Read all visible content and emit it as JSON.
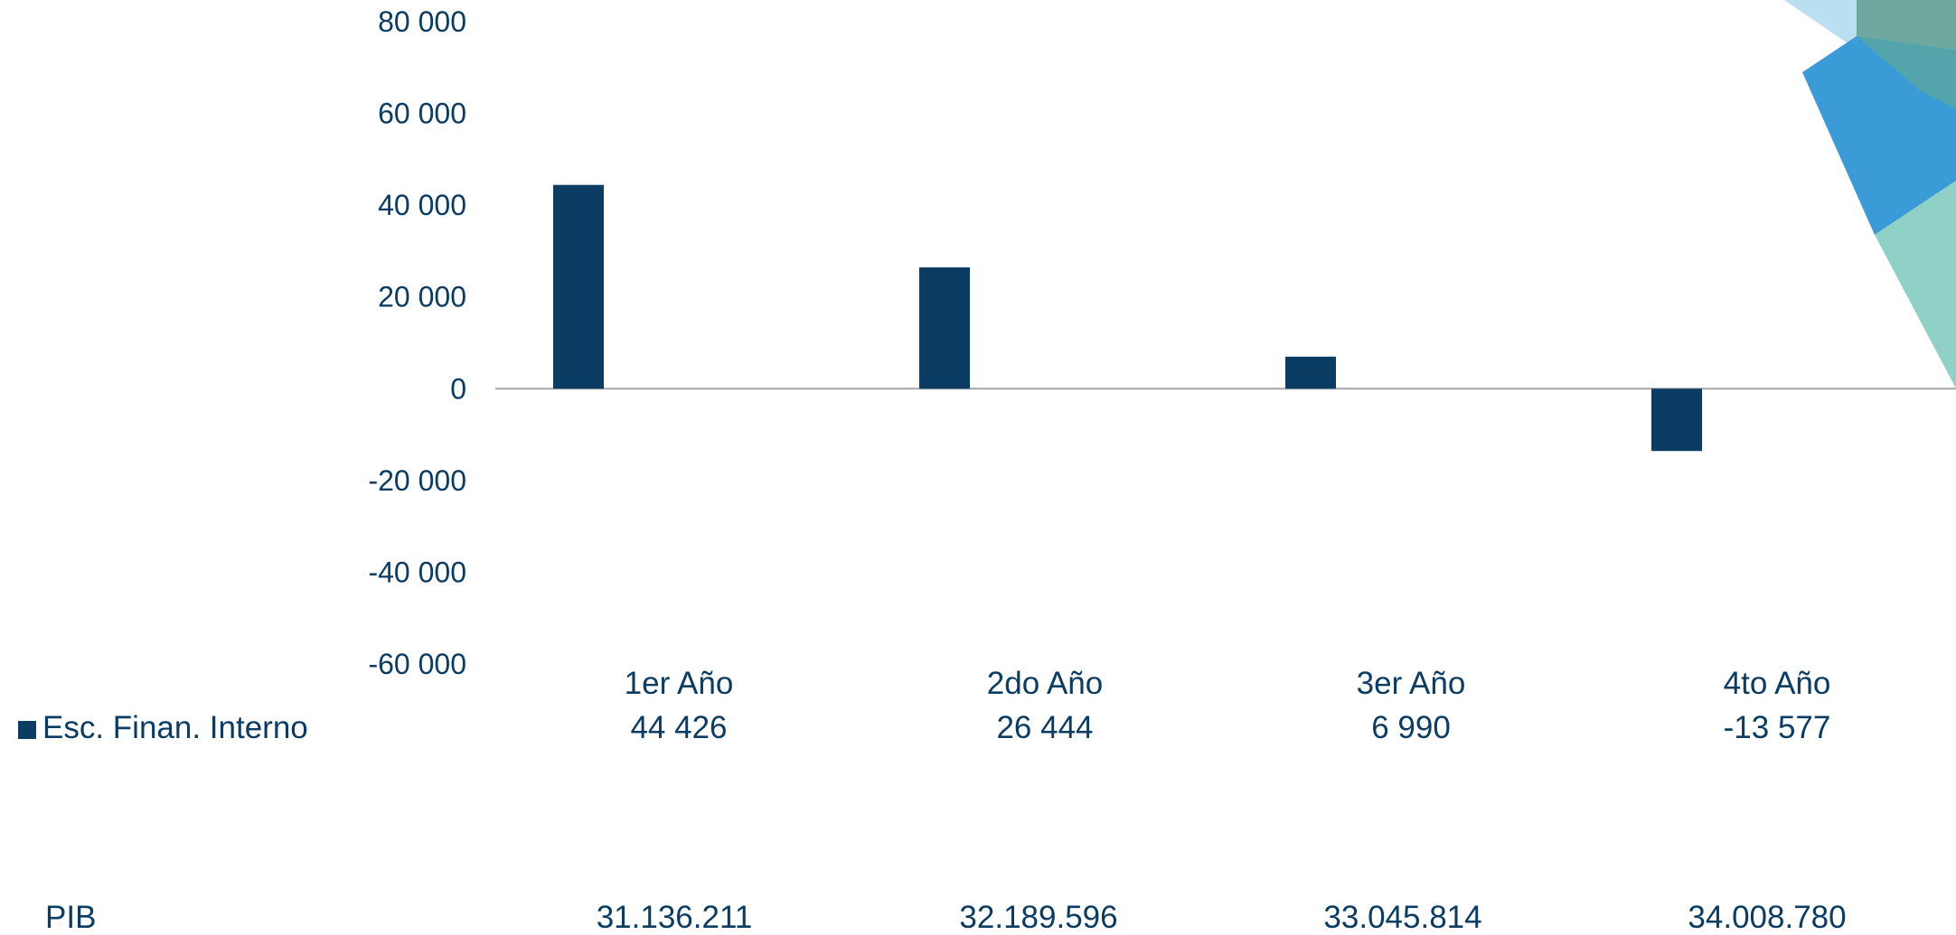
{
  "colors": {
    "bar": "#0b3c63",
    "text": "#0b3c63",
    "zero_line": "#a6a6a6"
  },
  "chart_data": {
    "type": "bar",
    "categories": [
      "1er Año",
      "2do Año",
      "3er Año",
      "4to Año"
    ],
    "series": [
      {
        "name": "Esc. Finan. Interno",
        "values": [
          44426,
          26444,
          6990,
          -13577
        ],
        "value_labels": [
          "44 426",
          "26 444",
          "6 990",
          "-13 577"
        ]
      }
    ],
    "ylim": [
      -60000,
      80000
    ],
    "yticks": [
      80000,
      60000,
      40000,
      20000,
      0,
      -20000,
      -40000,
      -60000
    ],
    "ytick_labels": [
      "80 000",
      "60 000",
      "40 000",
      "20 000",
      "0",
      "-20 000",
      "-40 000",
      "-60 000"
    ],
    "grid": false,
    "legend": "data-table-left"
  },
  "extra_row": {
    "label": "PIB",
    "values": [
      "31.136.211",
      "32.189.596",
      "33.045.814",
      "34.008.780"
    ]
  },
  "decor": {
    "colors": [
      "#b9dff0",
      "#3a9bd6",
      "#6fb7a8",
      "#8fd0c7",
      "#5aa8a0"
    ]
  }
}
